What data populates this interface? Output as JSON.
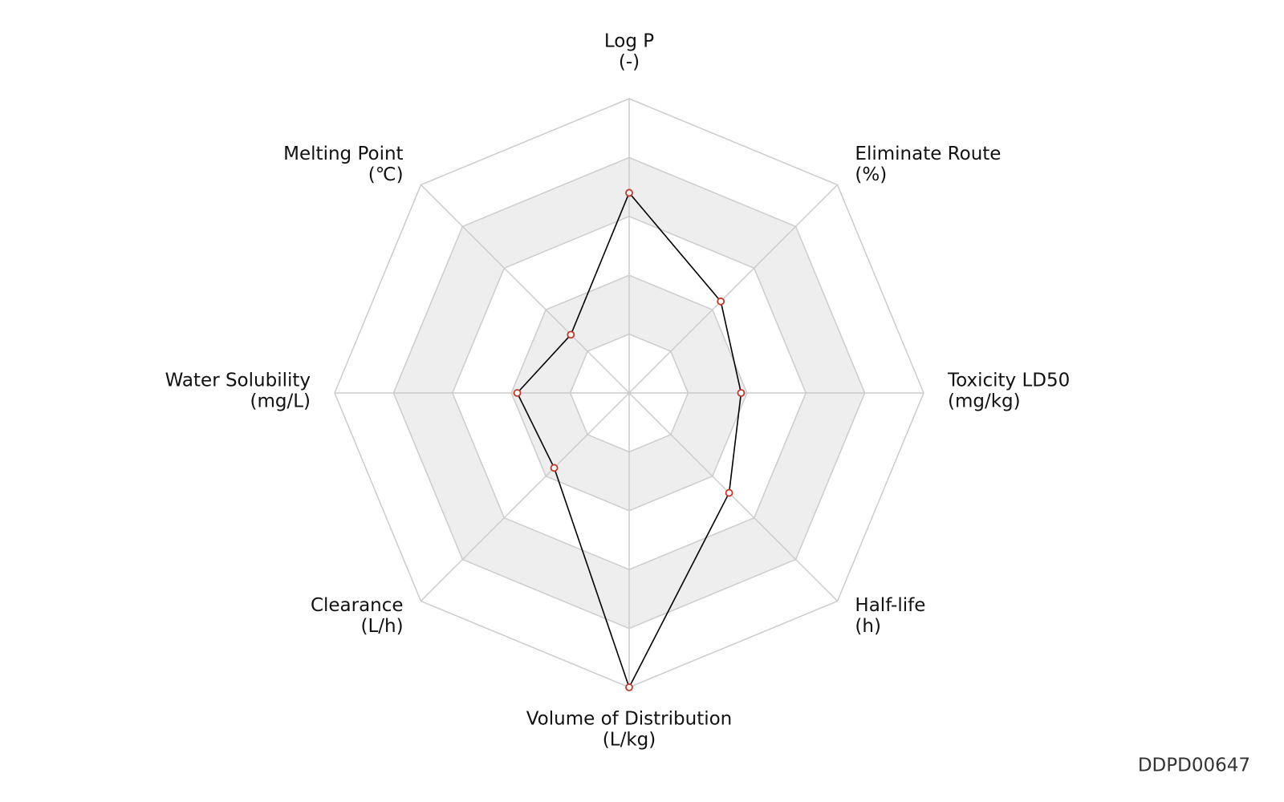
{
  "chart_data": {
    "type": "radar",
    "categories": [
      "Log P",
      "Eliminate Route",
      "Toxicity LD50",
      "Half-life",
      "Volume of Distribution",
      "Clearance",
      "Water Solubility",
      "Melting Point"
    ],
    "units": [
      "(-)",
      "(%)",
      "(mg/kg)",
      "(h)",
      "(L/kg)",
      "(L/h)",
      "(mg/L)",
      "(℃)"
    ],
    "values": [
      3.4,
      2.2,
      1.9,
      2.4,
      5.0,
      1.8,
      1.9,
      1.4
    ],
    "color": "#000000",
    "marker_color": "#c0392b",
    "ylim": [
      0,
      5
    ],
    "yticks": [
      1,
      2,
      3,
      4,
      5
    ],
    "grid": true,
    "annotation": "DDPD00647"
  }
}
